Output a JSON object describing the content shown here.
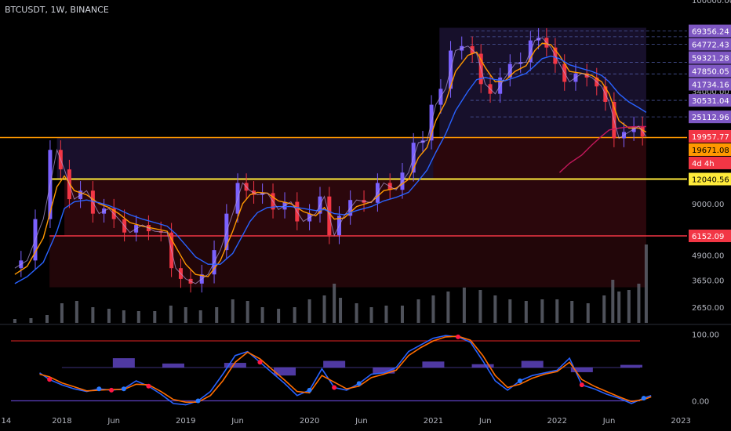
{
  "header": {
    "symbol": "BTCUSDT, 1W, BINANCE"
  },
  "chart_data": [
    {
      "type": "line",
      "subtype": "candlestick-with-moving-averages-and-volume",
      "title": "",
      "x_tick_labels": [
        "14",
        "2018",
        "Jun",
        "2019",
        "Jun",
        "2020",
        "Jun",
        "2021",
        "Jun",
        "2022",
        "Jun",
        "2023"
      ],
      "x_tick_years": [
        2017.55,
        2018.0,
        2018.42,
        2019.0,
        2019.42,
        2020.0,
        2020.42,
        2021.0,
        2021.42,
        2022.0,
        2022.42,
        2023.0
      ],
      "y_scale": "log",
      "ylim": [
        2200,
        100000
      ],
      "y_tick_labels": [
        {
          "label": "100000.00",
          "value": 100000
        },
        {
          "label": "34000.00",
          "value": 34000
        },
        {
          "label": "9000.00",
          "value": 9000
        },
        {
          "label": "4900.00",
          "value": 4900
        },
        {
          "label": "3650.00",
          "value": 3650
        },
        {
          "label": "2650.00",
          "value": 2650
        }
      ],
      "price_labels": [
        {
          "label": "69356.24",
          "value": 69356.24,
          "color": "#7e57c2"
        },
        {
          "label": "64772.43",
          "value": 64772.43,
          "color": "#7e57c2"
        },
        {
          "label": "59321.28",
          "value": 59321.28,
          "color": "#7e57c2"
        },
        {
          "label": "47850.05",
          "value": 47850.05,
          "color": "#7e57c2"
        },
        {
          "label": "41734.16",
          "value": 41734.16,
          "color": "#7e57c2"
        },
        {
          "label": "30531.04",
          "value": 30531.04,
          "color": "#7e57c2"
        },
        {
          "label": "25112.96",
          "value": 25112.96,
          "color": "#7e57c2"
        },
        {
          "label": "19957.77",
          "value": 19957.77,
          "color": "#f23645"
        },
        {
          "label": "4d 4h",
          "value": 18500,
          "color": "#f23645"
        },
        {
          "label": "19671.08",
          "value": 19671.08,
          "color": "#ff9800"
        },
        {
          "label": "12040.56",
          "value": 12040.56,
          "color": "#ffeb3b"
        },
        {
          "label": "6152.09",
          "value": 6152.09,
          "color": "#f23645"
        }
      ],
      "horizontal_levels": [
        {
          "value": 19671.08,
          "color": "#ff9800"
        },
        {
          "value": 12040.56,
          "color": "#ffeb3b"
        },
        {
          "value": 6152.09,
          "color": "#f23645"
        }
      ],
      "price_series": {
        "x": [
          2017.62,
          2017.72,
          2017.85,
          2017.96,
          2018.02,
          2018.1,
          2018.2,
          2018.3,
          2018.38,
          2018.46,
          2018.55,
          2018.65,
          2018.75,
          2018.85,
          2018.92,
          2019.0,
          2019.08,
          2019.18,
          2019.28,
          2019.38,
          2019.46,
          2019.52,
          2019.58,
          2019.66,
          2019.75,
          2019.85,
          2019.95,
          2020.05,
          2020.12,
          2020.2,
          2020.28,
          2020.38,
          2020.5,
          2020.6,
          2020.7,
          2020.8,
          2020.88,
          2020.95,
          2021.02,
          2021.1,
          2021.18,
          2021.28,
          2021.35,
          2021.42,
          2021.5,
          2021.58,
          2021.66,
          2021.75,
          2021.82,
          2021.88,
          2021.95,
          2022.02,
          2022.1,
          2022.2,
          2022.28,
          2022.36,
          2022.42,
          2022.5,
          2022.58,
          2022.66,
          2022.72
        ],
        "close": [
          4200,
          4600,
          7500,
          17000,
          13500,
          9500,
          10500,
          8000,
          8500,
          7500,
          6400,
          7000,
          6500,
          6400,
          4200,
          3700,
          3500,
          3900,
          5200,
          8000,
          11500,
          10500,
          10000,
          10200,
          8400,
          9200,
          7300,
          8000,
          9800,
          6200,
          7800,
          9400,
          9100,
          11500,
          10600,
          13000,
          18500,
          19000,
          29000,
          35000,
          55000,
          58000,
          53000,
          37000,
          33000,
          40000,
          47000,
          48000,
          62000,
          64000,
          57000,
          47000,
          38000,
          42000,
          40000,
          36000,
          30000,
          19500,
          21000,
          22500,
          19900
        ]
      },
      "moving_averages": [
        {
          "color": "#ff9800",
          "values": [
            3900,
            4300,
            6000,
            11000,
            12500,
            10500,
            10000,
            9000,
            8600,
            8000,
            7200,
            6900,
            6700,
            6500,
            5400,
            4400,
            3900,
            3800,
            4600,
            6500,
            9000,
            10000,
            10300,
            10200,
            9300,
            9000,
            8200,
            7800,
            8600,
            7500,
            7600,
            8700,
            9200,
            10500,
            10800,
            12000,
            15500,
            17500,
            24000,
            30000,
            43000,
            52000,
            54000,
            45000,
            38000,
            38500,
            43000,
            46000,
            55000,
            60000,
            59000,
            52000,
            43000,
            42000,
            41000,
            38000,
            33000,
            24000,
            22000,
            22000,
            21000
          ]
        },
        {
          "color": "#2962ff",
          "values": [
            3500,
            3800,
            4500,
            6500,
            8500,
            9200,
            9400,
            9100,
            8800,
            8400,
            7900,
            7500,
            7200,
            6900,
            6300,
            5500,
            4800,
            4400,
            4400,
            5000,
            6200,
            7300,
            8100,
            8600,
            8700,
            8700,
            8500,
            8300,
            8400,
            8000,
            7900,
            8300,
            8700,
            9300,
            9700,
            10300,
            11800,
            13400,
            16500,
            20500,
            27000,
            34000,
            39000,
            40000,
            39000,
            38500,
            40000,
            42000,
            46000,
            50000,
            51500,
            50000,
            46500,
            44500,
            43000,
            41000,
            38000,
            33000,
            30000,
            28000,
            26500
          ]
        },
        {
          "color": "#c2185b",
          "values": [
            null,
            null,
            null,
            null,
            null,
            null,
            null,
            null,
            null,
            null,
            null,
            null,
            null,
            null,
            null,
            null,
            null,
            null,
            null,
            null,
            null,
            null,
            null,
            null,
            null,
            null,
            null,
            null,
            null,
            null,
            null,
            null,
            null,
            null,
            null,
            null,
            null,
            null,
            null,
            null,
            null,
            null,
            null,
            null,
            null,
            null,
            null,
            null,
            null,
            null,
            null,
            13000,
            14500,
            16000,
            18000,
            20000,
            21500,
            22000,
            22300,
            22400,
            22400
          ]
        }
      ],
      "volume": {
        "x": [
          2017.62,
          2017.75,
          2017.88,
          2018.0,
          2018.12,
          2018.25,
          2018.38,
          2018.5,
          2018.62,
          2018.75,
          2018.88,
          2019.0,
          2019.12,
          2019.25,
          2019.38,
          2019.5,
          2019.62,
          2019.75,
          2019.88,
          2020.0,
          2020.12,
          2020.2,
          2020.25,
          2020.38,
          2020.5,
          2020.62,
          2020.75,
          2020.88,
          2021.0,
          2021.12,
          2021.25,
          2021.38,
          2021.5,
          2021.62,
          2021.75,
          2021.88,
          2022.0,
          2022.12,
          2022.25,
          2022.38,
          2022.45,
          2022.5,
          2022.58,
          2022.66,
          2022.72
        ],
        "values": [
          0.05,
          0.06,
          0.1,
          0.25,
          0.28,
          0.2,
          0.18,
          0.16,
          0.15,
          0.15,
          0.22,
          0.2,
          0.16,
          0.2,
          0.3,
          0.28,
          0.2,
          0.18,
          0.2,
          0.3,
          0.35,
          0.5,
          0.32,
          0.25,
          0.2,
          0.22,
          0.22,
          0.3,
          0.35,
          0.4,
          0.45,
          0.42,
          0.35,
          0.3,
          0.28,
          0.3,
          0.3,
          0.28,
          0.25,
          0.35,
          0.55,
          0.4,
          0.42,
          0.5,
          1.0
        ]
      }
    },
    {
      "type": "line",
      "subtype": "stochastic-rsi-oscillator",
      "title": "",
      "ylim": [
        -10,
        110
      ],
      "y_tick_labels": [
        {
          "label": "100.00",
          "value": 100
        },
        {
          "label": "0.00",
          "value": 0
        }
      ],
      "levels": [
        {
          "value": 90,
          "color": "#b71c1c"
        },
        {
          "value": 0,
          "color": "#5b3fbf"
        }
      ],
      "x": [
        2017.82,
        2017.9,
        2018.0,
        2018.1,
        2018.2,
        2018.3,
        2018.4,
        2018.5,
        2018.6,
        2018.7,
        2018.8,
        2018.9,
        2019.0,
        2019.1,
        2019.2,
        2019.3,
        2019.4,
        2019.5,
        2019.6,
        2019.7,
        2019.8,
        2019.9,
        2020.0,
        2020.1,
        2020.2,
        2020.3,
        2020.4,
        2020.5,
        2020.6,
        2020.7,
        2020.8,
        2020.9,
        2021.0,
        2021.1,
        2021.2,
        2021.3,
        2021.4,
        2021.5,
        2021.6,
        2021.7,
        2021.8,
        2021.9,
        2022.0,
        2022.1,
        2022.2,
        2022.3,
        2022.4,
        2022.5,
        2022.6,
        2022.7,
        2022.76
      ],
      "series": [
        {
          "color": "#2962ff",
          "values": [
            42,
            32,
            24,
            18,
            14,
            18,
            16,
            18,
            30,
            22,
            10,
            -4,
            -6,
            0,
            14,
            40,
            68,
            74,
            58,
            42,
            26,
            8,
            16,
            48,
            20,
            16,
            26,
            40,
            42,
            50,
            74,
            84,
            94,
            98,
            96,
            88,
            60,
            30,
            16,
            30,
            38,
            42,
            46,
            64,
            24,
            18,
            10,
            4,
            -4,
            4,
            8
          ]
        },
        {
          "color": "#ff6d00",
          "values": [
            40,
            36,
            27,
            21,
            15,
            16,
            17,
            17,
            25,
            24,
            14,
            2,
            -2,
            -2,
            8,
            30,
            58,
            73,
            63,
            47,
            31,
            14,
            12,
            38,
            28,
            18,
            22,
            35,
            40,
            46,
            68,
            80,
            90,
            96,
            97,
            91,
            68,
            38,
            20,
            25,
            34,
            40,
            44,
            58,
            32,
            22,
            14,
            6,
            -1,
            2,
            6
          ]
        }
      ],
      "histogram": {
        "x": [
          2018.5,
          2018.9,
          2019.4,
          2019.8,
          2020.2,
          2020.6,
          2021.0,
          2021.4,
          2021.8,
          2022.2,
          2022.6
        ],
        "values": [
          14,
          6,
          7,
          -12,
          10,
          -9,
          9,
          5,
          10,
          -7,
          4
        ]
      }
    }
  ]
}
